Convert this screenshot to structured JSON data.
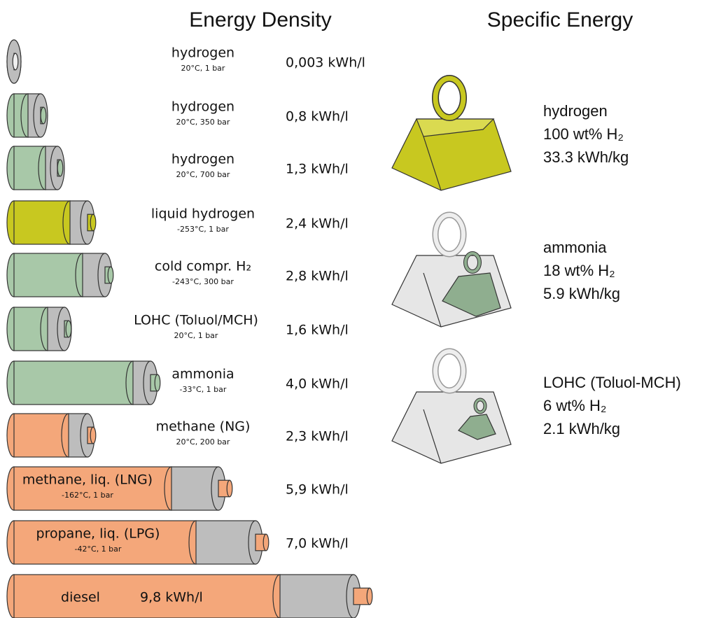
{
  "header": {
    "left_title": "Energy Density",
    "right_title": "Specific Energy"
  },
  "density": [
    {
      "name": "hydrogen",
      "condition": "20°C, 1 bar",
      "value": "0,003 kWh/l"
    },
    {
      "name": "hydrogen",
      "condition": "20°C, 350 bar",
      "value": "0,8 kWh/l"
    },
    {
      "name": "hydrogen",
      "condition": "20°C, 700 bar",
      "value": "1,3 kWh/l"
    },
    {
      "name": "liquid hydrogen",
      "condition": "-253°C, 1 bar",
      "value": "2,4 kWh/l"
    },
    {
      "name": "cold compr. H₂",
      "condition": "-243°C, 300 bar",
      "value": "2,8 kWh/l"
    },
    {
      "name": "LOHC (Toluol/MCH)",
      "condition": "20°C, 1 bar",
      "value": "1,6 kWh/l"
    },
    {
      "name": "ammonia",
      "condition": "-33°C, 1 bar",
      "value": "4,0 kWh/l"
    },
    {
      "name": "methane (NG)",
      "condition": "20°C, 200 bar",
      "value": "2,3 kWh/l"
    },
    {
      "name": "methane, liq. (LNG)",
      "condition": "-162°C, 1 bar",
      "value": "5,9 kWh/l"
    },
    {
      "name": "propane, liq. (LPG)",
      "condition": "-42°C, 1 bar",
      "value": "7,0 kWh/l"
    },
    {
      "name": "diesel",
      "value": "9,8 kWh/l"
    }
  ],
  "specific": [
    {
      "name": "hydrogen",
      "content": "100 wt% H₂",
      "value": "33.3 kWh/kg"
    },
    {
      "name": "ammonia",
      "content": "18 wt% H₂",
      "value": "5.9 kWh/kg"
    },
    {
      "name": "LOHC (Toluol-MCH)",
      "content": "6 wt% H₂",
      "value": "2.1 kWh/kg"
    }
  ]
}
